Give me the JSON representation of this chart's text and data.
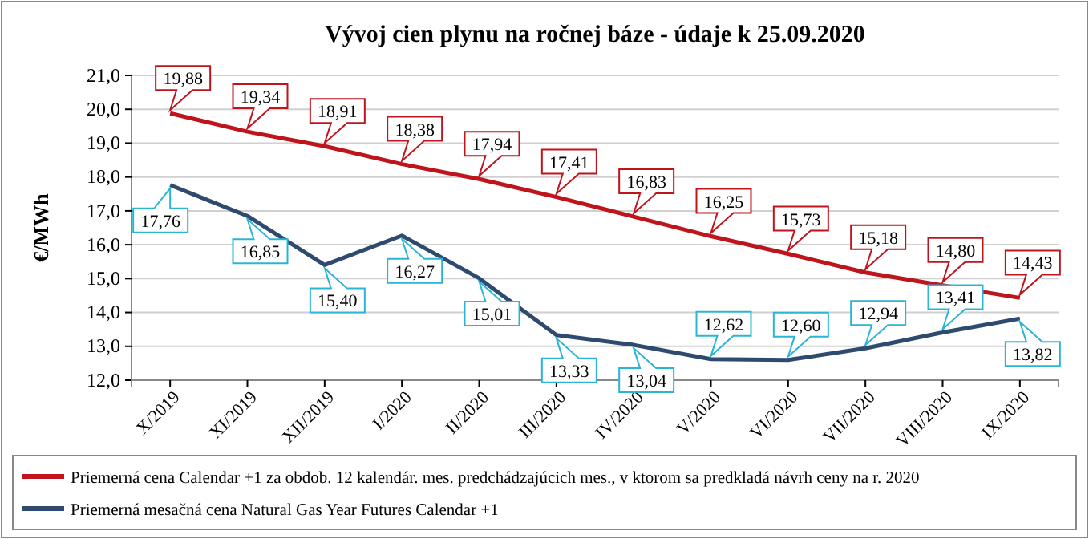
{
  "chart_data": {
    "type": "line",
    "title": "Vývoj cien plynu na ročnej báze - údaje k 25.09.2020",
    "ylabel": "€/MWh",
    "categories": [
      "X/2019",
      "XI/2019",
      "XII/2019",
      "I/2020",
      "II/2020",
      "III/2020",
      "IV/2020",
      "V/2020",
      "VI/2020",
      "VII/2020",
      "VIII/2020",
      "IX/2020"
    ],
    "series": [
      {
        "name": "Priemerná cena Calendar +1 za obdob. 12 kalendár. mes. predchádzajúcich mes., v ktorom sa predkladá návrh ceny na r. 2020",
        "color": "#c0141c",
        "values": [
          19.88,
          19.34,
          18.91,
          18.38,
          17.94,
          17.41,
          16.83,
          16.25,
          15.73,
          15.18,
          14.8,
          14.43
        ],
        "value_labels": [
          "19,88",
          "19,34",
          "18,91",
          "18,38",
          "17,94",
          "17,41",
          "16,83",
          "16,25",
          "15,73",
          "15,18",
          "14,80",
          "14,43"
        ]
      },
      {
        "name": "Priemerná mesačná cena Natural Gas Year Futures Calendar +1",
        "color": "#2e4a6e",
        "values": [
          17.76,
          16.85,
          15.4,
          16.27,
          15.01,
          13.33,
          13.04,
          12.62,
          12.6,
          12.94,
          13.41,
          13.82
        ],
        "value_labels": [
          "17,76",
          "16,85",
          "15,40",
          "16,27",
          "15,01",
          "13,33",
          "13,04",
          "12,62",
          "12,60",
          "12,94",
          "13,41",
          "13,82"
        ]
      }
    ],
    "ylim": [
      12,
      21
    ],
    "yticks": [
      {
        "value": 12,
        "label": "12,0"
      },
      {
        "value": 13,
        "label": "13,0"
      },
      {
        "value": 14,
        "label": "14,0"
      },
      {
        "value": 15,
        "label": "15,0"
      },
      {
        "value": 16,
        "label": "16,0"
      },
      {
        "value": 17,
        "label": "17,0"
      },
      {
        "value": 18,
        "label": "18,0"
      },
      {
        "value": 19,
        "label": "19,0"
      },
      {
        "value": 20,
        "label": "20,0"
      },
      {
        "value": 21,
        "label": "21,0"
      }
    ],
    "grid": "y",
    "marker": "none",
    "line_style": "solid",
    "legend": "bottom"
  }
}
